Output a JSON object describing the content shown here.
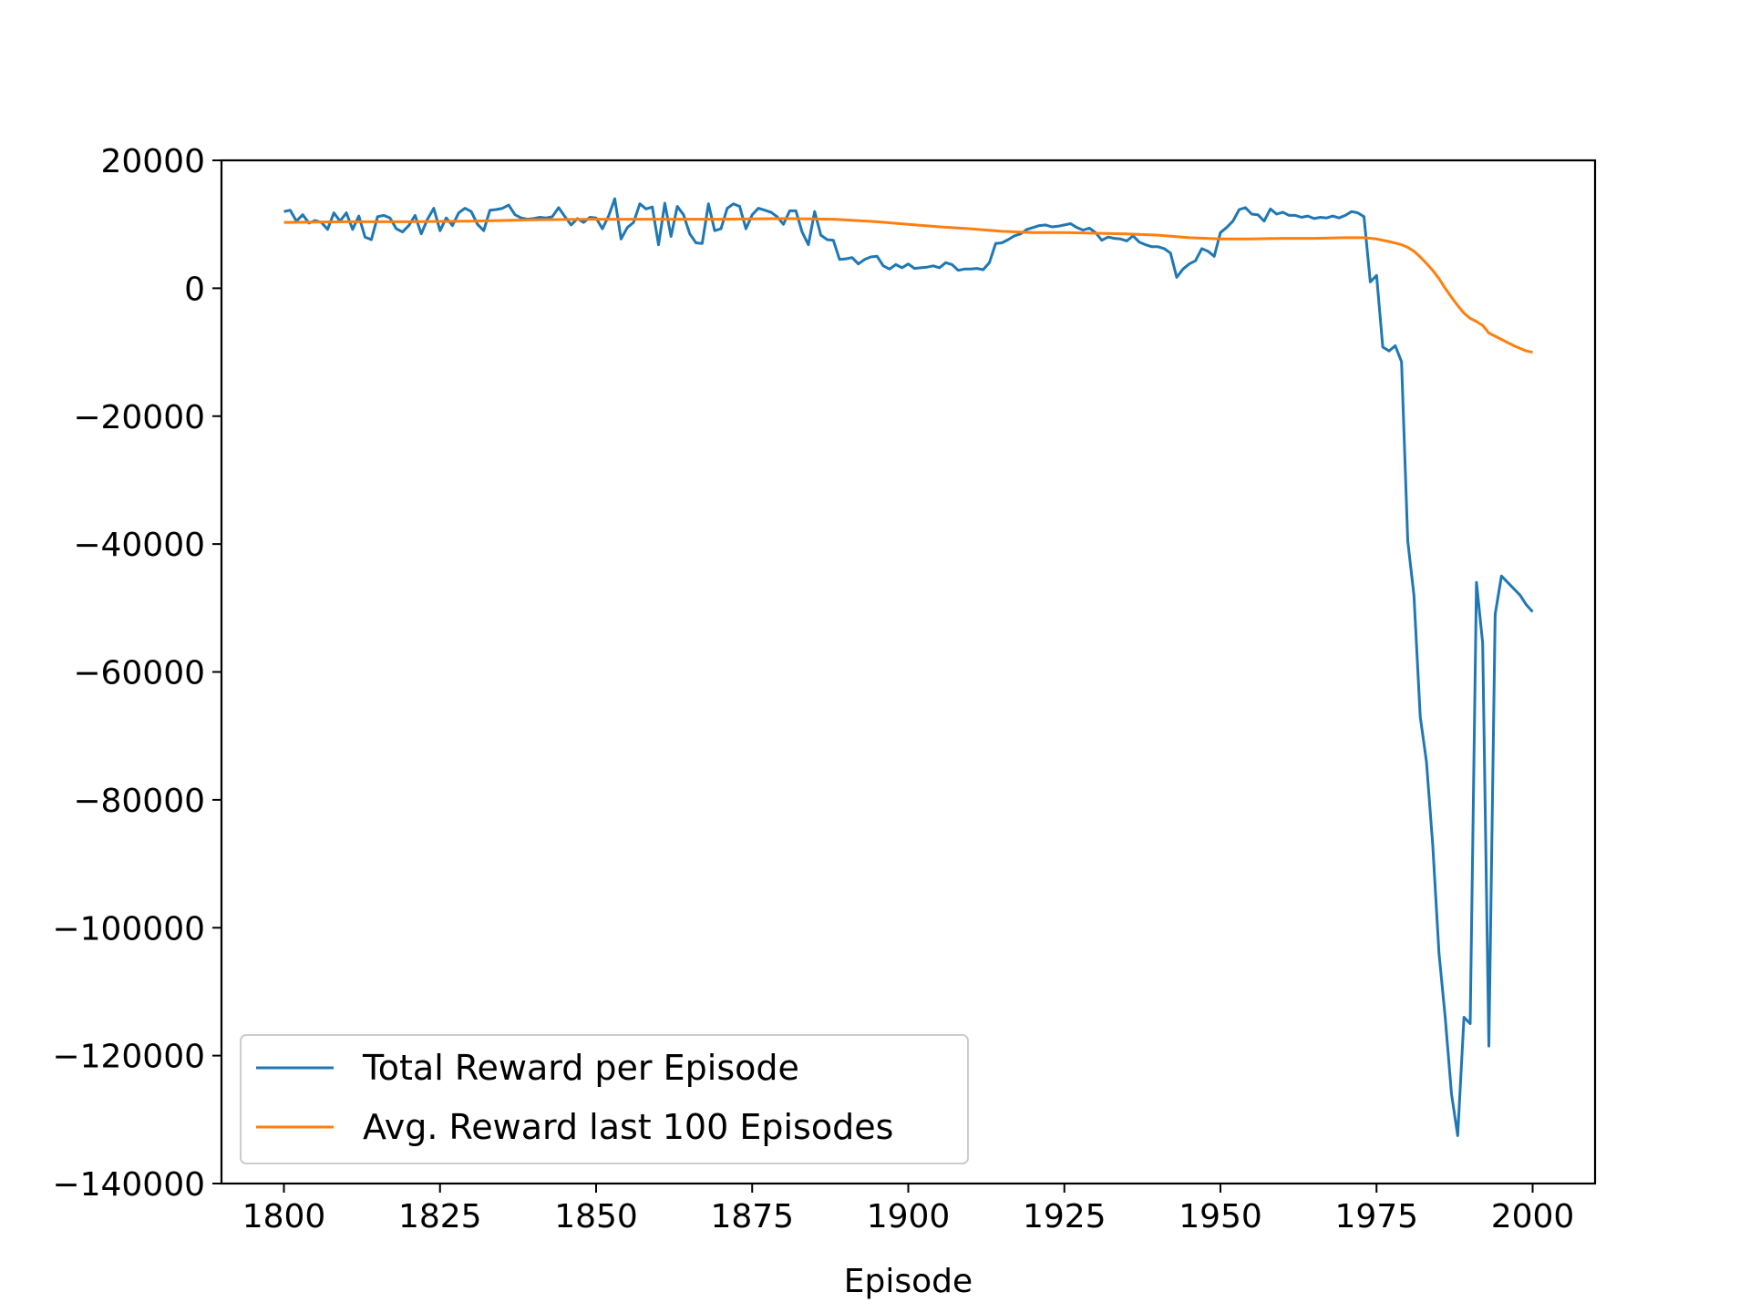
{
  "chart_data": {
    "type": "line",
    "title": "",
    "xlabel": "Episode",
    "ylabel": "",
    "xlim": [
      1790,
      2010
    ],
    "ylim": [
      -140000,
      20000
    ],
    "x_ticks": [
      1800,
      1825,
      1850,
      1875,
      1900,
      1925,
      1950,
      1975,
      2000
    ],
    "x_tick_labels": [
      "1800",
      "1825",
      "1850",
      "1875",
      "1900",
      "1925",
      "1950",
      "1975",
      "2000"
    ],
    "y_ticks": [
      20000,
      0,
      -20000,
      -40000,
      -60000,
      -80000,
      -100000,
      -120000,
      -140000
    ],
    "y_tick_labels": [
      "20000",
      "0",
      "−20000",
      "−40000",
      "−60000",
      "−80000",
      "−100000",
      "−120000",
      "−140000"
    ],
    "grid": false,
    "legend_position": "lower-left",
    "series": [
      {
        "name": "Total Reward per Episode",
        "color": "#1f77b4",
        "points": [
          [
            1800,
            12000
          ],
          [
            1801,
            12200
          ],
          [
            1802,
            10500
          ],
          [
            1803,
            11500
          ],
          [
            1804,
            10200
          ],
          [
            1805,
            10600
          ],
          [
            1806,
            10300
          ],
          [
            1807,
            9200
          ],
          [
            1808,
            11800
          ],
          [
            1809,
            10500
          ],
          [
            1810,
            11800
          ],
          [
            1811,
            9200
          ],
          [
            1812,
            11300
          ],
          [
            1813,
            8000
          ],
          [
            1814,
            7600
          ],
          [
            1815,
            11200
          ],
          [
            1816,
            11400
          ],
          [
            1817,
            11000
          ],
          [
            1818,
            9300
          ],
          [
            1819,
            8800
          ],
          [
            1820,
            9800
          ],
          [
            1821,
            11400
          ],
          [
            1822,
            8500
          ],
          [
            1823,
            10800
          ],
          [
            1824,
            12500
          ],
          [
            1825,
            9000
          ],
          [
            1826,
            11000
          ],
          [
            1827,
            9800
          ],
          [
            1828,
            11800
          ],
          [
            1829,
            12500
          ],
          [
            1830,
            12000
          ],
          [
            1831,
            10000
          ],
          [
            1832,
            9000
          ],
          [
            1833,
            12200
          ],
          [
            1834,
            12300
          ],
          [
            1835,
            12500
          ],
          [
            1836,
            13000
          ],
          [
            1837,
            11500
          ],
          [
            1838,
            11000
          ],
          [
            1839,
            10800
          ],
          [
            1840,
            10900
          ],
          [
            1841,
            11100
          ],
          [
            1842,
            11000
          ],
          [
            1843,
            11200
          ],
          [
            1844,
            12600
          ],
          [
            1845,
            11200
          ],
          [
            1846,
            9900
          ],
          [
            1847,
            10900
          ],
          [
            1848,
            10300
          ],
          [
            1849,
            11100
          ],
          [
            1850,
            11000
          ],
          [
            1851,
            9300
          ],
          [
            1852,
            11300
          ],
          [
            1853,
            14000
          ],
          [
            1854,
            7700
          ],
          [
            1855,
            9500
          ],
          [
            1856,
            10300
          ],
          [
            1857,
            13200
          ],
          [
            1858,
            12400
          ],
          [
            1859,
            12700
          ],
          [
            1860,
            6800
          ],
          [
            1861,
            13300
          ],
          [
            1862,
            8100
          ],
          [
            1863,
            12800
          ],
          [
            1864,
            11500
          ],
          [
            1865,
            8500
          ],
          [
            1866,
            7100
          ],
          [
            1867,
            7000
          ],
          [
            1868,
            13200
          ],
          [
            1869,
            9000
          ],
          [
            1870,
            9300
          ],
          [
            1871,
            12500
          ],
          [
            1872,
            13200
          ],
          [
            1873,
            12800
          ],
          [
            1874,
            9300
          ],
          [
            1875,
            11500
          ],
          [
            1876,
            12500
          ],
          [
            1877,
            12200
          ],
          [
            1878,
            11900
          ],
          [
            1879,
            11200
          ],
          [
            1880,
            10000
          ],
          [
            1881,
            12100
          ],
          [
            1882,
            12100
          ],
          [
            1883,
            8800
          ],
          [
            1884,
            6800
          ],
          [
            1885,
            12000
          ],
          [
            1886,
            8300
          ],
          [
            1887,
            7600
          ],
          [
            1888,
            7500
          ],
          [
            1889,
            4500
          ],
          [
            1890,
            4600
          ],
          [
            1891,
            4800
          ],
          [
            1892,
            3800
          ],
          [
            1893,
            4500
          ],
          [
            1894,
            4900
          ],
          [
            1895,
            5000
          ],
          [
            1896,
            3500
          ],
          [
            1897,
            3000
          ],
          [
            1898,
            3700
          ],
          [
            1899,
            3200
          ],
          [
            1900,
            3800
          ],
          [
            1901,
            3100
          ],
          [
            1902,
            3200
          ],
          [
            1903,
            3300
          ],
          [
            1904,
            3500
          ],
          [
            1905,
            3200
          ],
          [
            1906,
            4000
          ],
          [
            1907,
            3700
          ],
          [
            1908,
            2800
          ],
          [
            1909,
            3000
          ],
          [
            1910,
            3000
          ],
          [
            1911,
            3100
          ],
          [
            1912,
            2900
          ],
          [
            1913,
            4000
          ],
          [
            1914,
            7000
          ],
          [
            1915,
            7100
          ],
          [
            1916,
            7600
          ],
          [
            1917,
            8200
          ],
          [
            1918,
            8500
          ],
          [
            1919,
            9200
          ],
          [
            1920,
            9500
          ],
          [
            1921,
            9800
          ],
          [
            1922,
            9900
          ],
          [
            1923,
            9600
          ],
          [
            1924,
            9700
          ],
          [
            1925,
            9900
          ],
          [
            1926,
            10100
          ],
          [
            1927,
            9500
          ],
          [
            1928,
            9100
          ],
          [
            1929,
            9400
          ],
          [
            1930,
            8700
          ],
          [
            1931,
            7500
          ],
          [
            1932,
            8000
          ],
          [
            1933,
            7800
          ],
          [
            1934,
            7700
          ],
          [
            1935,
            7400
          ],
          [
            1936,
            8200
          ],
          [
            1937,
            7200
          ],
          [
            1938,
            6800
          ],
          [
            1939,
            6500
          ],
          [
            1940,
            6500
          ],
          [
            1941,
            6200
          ],
          [
            1942,
            5500
          ],
          [
            1943,
            1700
          ],
          [
            1944,
            3000
          ],
          [
            1945,
            3800
          ],
          [
            1946,
            4300
          ],
          [
            1947,
            6200
          ],
          [
            1948,
            5800
          ],
          [
            1949,
            5000
          ],
          [
            1950,
            8700
          ],
          [
            1951,
            9500
          ],
          [
            1952,
            10500
          ],
          [
            1953,
            12300
          ],
          [
            1954,
            12600
          ],
          [
            1955,
            11600
          ],
          [
            1956,
            11500
          ],
          [
            1957,
            10500
          ],
          [
            1958,
            12400
          ],
          [
            1959,
            11600
          ],
          [
            1960,
            11900
          ],
          [
            1961,
            11400
          ],
          [
            1962,
            11400
          ],
          [
            1963,
            11100
          ],
          [
            1964,
            11300
          ],
          [
            1965,
            10900
          ],
          [
            1966,
            11100
          ],
          [
            1967,
            11000
          ],
          [
            1968,
            11300
          ],
          [
            1969,
            11000
          ],
          [
            1970,
            11400
          ],
          [
            1971,
            12000
          ],
          [
            1972,
            11800
          ],
          [
            1973,
            11200
          ],
          [
            1974,
            1000
          ],
          [
            1975,
            2000
          ],
          [
            1976,
            -9200
          ],
          [
            1977,
            -9800
          ],
          [
            1978,
            -9000
          ],
          [
            1979,
            -11500
          ],
          [
            1980,
            -39500
          ],
          [
            1981,
            -48000
          ],
          [
            1982,
            -67000
          ],
          [
            1983,
            -74000
          ],
          [
            1984,
            -87000
          ],
          [
            1985,
            -104000
          ],
          [
            1986,
            -114000
          ],
          [
            1987,
            -126000
          ],
          [
            1988,
            -132500
          ],
          [
            1989,
            -114000
          ],
          [
            1990,
            -115000
          ],
          [
            1991,
            -46000
          ],
          [
            1992,
            -55500
          ],
          [
            1993,
            -118500
          ],
          [
            1994,
            -51000
          ],
          [
            1995,
            -45000
          ],
          [
            1996,
            -46000
          ],
          [
            1997,
            -47000
          ],
          [
            1998,
            -48000
          ],
          [
            1999,
            -49500
          ],
          [
            2000,
            -50600
          ]
        ]
      },
      {
        "name": "Avg. Reward last 100 Episodes",
        "color": "#ff7f0e",
        "points": [
          [
            1800,
            10300
          ],
          [
            1810,
            10400
          ],
          [
            1820,
            10400
          ],
          [
            1830,
            10500
          ],
          [
            1840,
            10700
          ],
          [
            1850,
            10800
          ],
          [
            1860,
            10800
          ],
          [
            1870,
            10800
          ],
          [
            1880,
            10900
          ],
          [
            1888,
            10800
          ],
          [
            1895,
            10400
          ],
          [
            1900,
            10000
          ],
          [
            1905,
            9600
          ],
          [
            1910,
            9300
          ],
          [
            1915,
            8900
          ],
          [
            1920,
            8700
          ],
          [
            1925,
            8700
          ],
          [
            1930,
            8600
          ],
          [
            1935,
            8500
          ],
          [
            1940,
            8300
          ],
          [
            1945,
            7900
          ],
          [
            1950,
            7700
          ],
          [
            1955,
            7700
          ],
          [
            1960,
            7800
          ],
          [
            1965,
            7800
          ],
          [
            1970,
            7900
          ],
          [
            1973,
            7900
          ],
          [
            1975,
            7700
          ],
          [
            1977,
            7300
          ],
          [
            1979,
            6800
          ],
          [
            1980,
            6400
          ],
          [
            1981,
            5800
          ],
          [
            1982,
            4900
          ],
          [
            1983,
            3900
          ],
          [
            1984,
            2800
          ],
          [
            1985,
            1500
          ],
          [
            1986,
            0
          ],
          [
            1987,
            -1400
          ],
          [
            1988,
            -2700
          ],
          [
            1989,
            -3900
          ],
          [
            1990,
            -4700
          ],
          [
            1991,
            -5200
          ],
          [
            1992,
            -5800
          ],
          [
            1993,
            -7000
          ],
          [
            1994,
            -7500
          ],
          [
            1995,
            -8000
          ],
          [
            1996,
            -8500
          ],
          [
            1997,
            -9000
          ],
          [
            1998,
            -9400
          ],
          [
            1999,
            -9800
          ],
          [
            2000,
            -10000
          ]
        ]
      }
    ]
  }
}
